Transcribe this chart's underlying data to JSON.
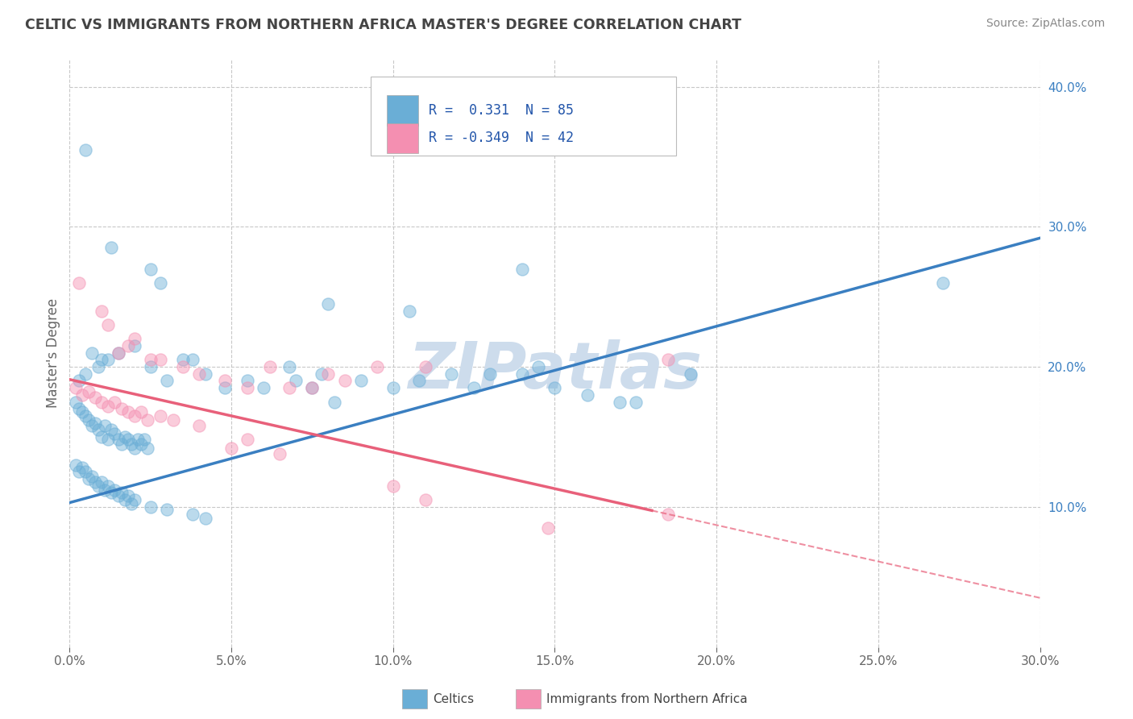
{
  "title": "CELTIC VS IMMIGRANTS FROM NORTHERN AFRICA MASTER'S DEGREE CORRELATION CHART",
  "source_text": "Source: ZipAtlas.com",
  "watermark": "ZIPatlas",
  "ylabel": "Master's Degree",
  "xlim": [
    0.0,
    0.3
  ],
  "ylim": [
    0.0,
    0.42
  ],
  "xtick_labels": [
    "0.0%",
    "5.0%",
    "10.0%",
    "15.0%",
    "20.0%",
    "25.0%",
    "30.0%"
  ],
  "xtick_vals": [
    0.0,
    0.05,
    0.1,
    0.15,
    0.2,
    0.25,
    0.3
  ],
  "ytick_labels": [
    "10.0%",
    "20.0%",
    "30.0%",
    "40.0%"
  ],
  "ytick_vals": [
    0.1,
    0.2,
    0.3,
    0.4
  ],
  "blue_color": "#6aaed6",
  "pink_color": "#f48fb1",
  "blue_line_color": "#3a7fc1",
  "pink_line_color": "#e8607a",
  "grid_color": "#c8c8c8",
  "background_color": "#ffffff",
  "title_color": "#444444",
  "source_color": "#888888",
  "watermark_color": "#cddcec",
  "blue_line_endpoints": [
    [
      0.0,
      0.103
    ],
    [
      0.3,
      0.292
    ]
  ],
  "pink_line_endpoints": [
    [
      0.0,
      0.191
    ],
    [
      0.3,
      0.035
    ]
  ],
  "pink_line_solid_end": 0.18,
  "celtics_dots": [
    [
      0.005,
      0.355
    ],
    [
      0.013,
      0.285
    ],
    [
      0.025,
      0.27
    ],
    [
      0.028,
      0.26
    ],
    [
      0.08,
      0.245
    ],
    [
      0.105,
      0.24
    ],
    [
      0.14,
      0.27
    ],
    [
      0.003,
      0.19
    ],
    [
      0.005,
      0.195
    ],
    [
      0.007,
      0.21
    ],
    [
      0.009,
      0.2
    ],
    [
      0.01,
      0.205
    ],
    [
      0.012,
      0.205
    ],
    [
      0.015,
      0.21
    ],
    [
      0.02,
      0.215
    ],
    [
      0.025,
      0.2
    ],
    [
      0.03,
      0.19
    ],
    [
      0.035,
      0.205
    ],
    [
      0.038,
      0.205
    ],
    [
      0.042,
      0.195
    ],
    [
      0.048,
      0.185
    ],
    [
      0.055,
      0.19
    ],
    [
      0.06,
      0.185
    ],
    [
      0.068,
      0.2
    ],
    [
      0.07,
      0.19
    ],
    [
      0.075,
      0.185
    ],
    [
      0.078,
      0.195
    ],
    [
      0.082,
      0.175
    ],
    [
      0.09,
      0.19
    ],
    [
      0.1,
      0.185
    ],
    [
      0.108,
      0.19
    ],
    [
      0.118,
      0.195
    ],
    [
      0.125,
      0.185
    ],
    [
      0.13,
      0.195
    ],
    [
      0.14,
      0.195
    ],
    [
      0.145,
      0.2
    ],
    [
      0.15,
      0.185
    ],
    [
      0.16,
      0.18
    ],
    [
      0.17,
      0.175
    ],
    [
      0.175,
      0.175
    ],
    [
      0.192,
      0.195
    ],
    [
      0.27,
      0.26
    ],
    [
      0.002,
      0.175
    ],
    [
      0.003,
      0.17
    ],
    [
      0.004,
      0.168
    ],
    [
      0.005,
      0.165
    ],
    [
      0.006,
      0.162
    ],
    [
      0.007,
      0.158
    ],
    [
      0.008,
      0.16
    ],
    [
      0.009,
      0.155
    ],
    [
      0.01,
      0.15
    ],
    [
      0.011,
      0.158
    ],
    [
      0.012,
      0.148
    ],
    [
      0.013,
      0.155
    ],
    [
      0.014,
      0.152
    ],
    [
      0.015,
      0.148
    ],
    [
      0.016,
      0.145
    ],
    [
      0.017,
      0.15
    ],
    [
      0.018,
      0.148
    ],
    [
      0.019,
      0.145
    ],
    [
      0.02,
      0.142
    ],
    [
      0.021,
      0.148
    ],
    [
      0.022,
      0.145
    ],
    [
      0.023,
      0.148
    ],
    [
      0.024,
      0.142
    ],
    [
      0.002,
      0.13
    ],
    [
      0.003,
      0.125
    ],
    [
      0.004,
      0.128
    ],
    [
      0.005,
      0.125
    ],
    [
      0.006,
      0.12
    ],
    [
      0.007,
      0.122
    ],
    [
      0.008,
      0.118
    ],
    [
      0.009,
      0.115
    ],
    [
      0.01,
      0.118
    ],
    [
      0.011,
      0.112
    ],
    [
      0.012,
      0.115
    ],
    [
      0.013,
      0.11
    ],
    [
      0.014,
      0.112
    ],
    [
      0.015,
      0.108
    ],
    [
      0.016,
      0.11
    ],
    [
      0.017,
      0.105
    ],
    [
      0.018,
      0.108
    ],
    [
      0.019,
      0.102
    ],
    [
      0.02,
      0.105
    ],
    [
      0.025,
      0.1
    ],
    [
      0.03,
      0.098
    ],
    [
      0.038,
      0.095
    ],
    [
      0.042,
      0.092
    ]
  ],
  "immigrants_dots": [
    [
      0.003,
      0.26
    ],
    [
      0.01,
      0.24
    ],
    [
      0.012,
      0.23
    ],
    [
      0.015,
      0.21
    ],
    [
      0.018,
      0.215
    ],
    [
      0.02,
      0.22
    ],
    [
      0.025,
      0.205
    ],
    [
      0.028,
      0.205
    ],
    [
      0.035,
      0.2
    ],
    [
      0.04,
      0.195
    ],
    [
      0.048,
      0.19
    ],
    [
      0.055,
      0.185
    ],
    [
      0.062,
      0.2
    ],
    [
      0.068,
      0.185
    ],
    [
      0.075,
      0.185
    ],
    [
      0.08,
      0.195
    ],
    [
      0.085,
      0.19
    ],
    [
      0.095,
      0.2
    ],
    [
      0.11,
      0.2
    ],
    [
      0.185,
      0.205
    ],
    [
      0.002,
      0.185
    ],
    [
      0.004,
      0.18
    ],
    [
      0.006,
      0.182
    ],
    [
      0.008,
      0.178
    ],
    [
      0.01,
      0.175
    ],
    [
      0.012,
      0.172
    ],
    [
      0.014,
      0.175
    ],
    [
      0.016,
      0.17
    ],
    [
      0.018,
      0.168
    ],
    [
      0.02,
      0.165
    ],
    [
      0.022,
      0.168
    ],
    [
      0.024,
      0.162
    ],
    [
      0.028,
      0.165
    ],
    [
      0.032,
      0.162
    ],
    [
      0.04,
      0.158
    ],
    [
      0.05,
      0.142
    ],
    [
      0.055,
      0.148
    ],
    [
      0.065,
      0.138
    ],
    [
      0.1,
      0.115
    ],
    [
      0.11,
      0.105
    ],
    [
      0.185,
      0.095
    ],
    [
      0.148,
      0.085
    ]
  ]
}
